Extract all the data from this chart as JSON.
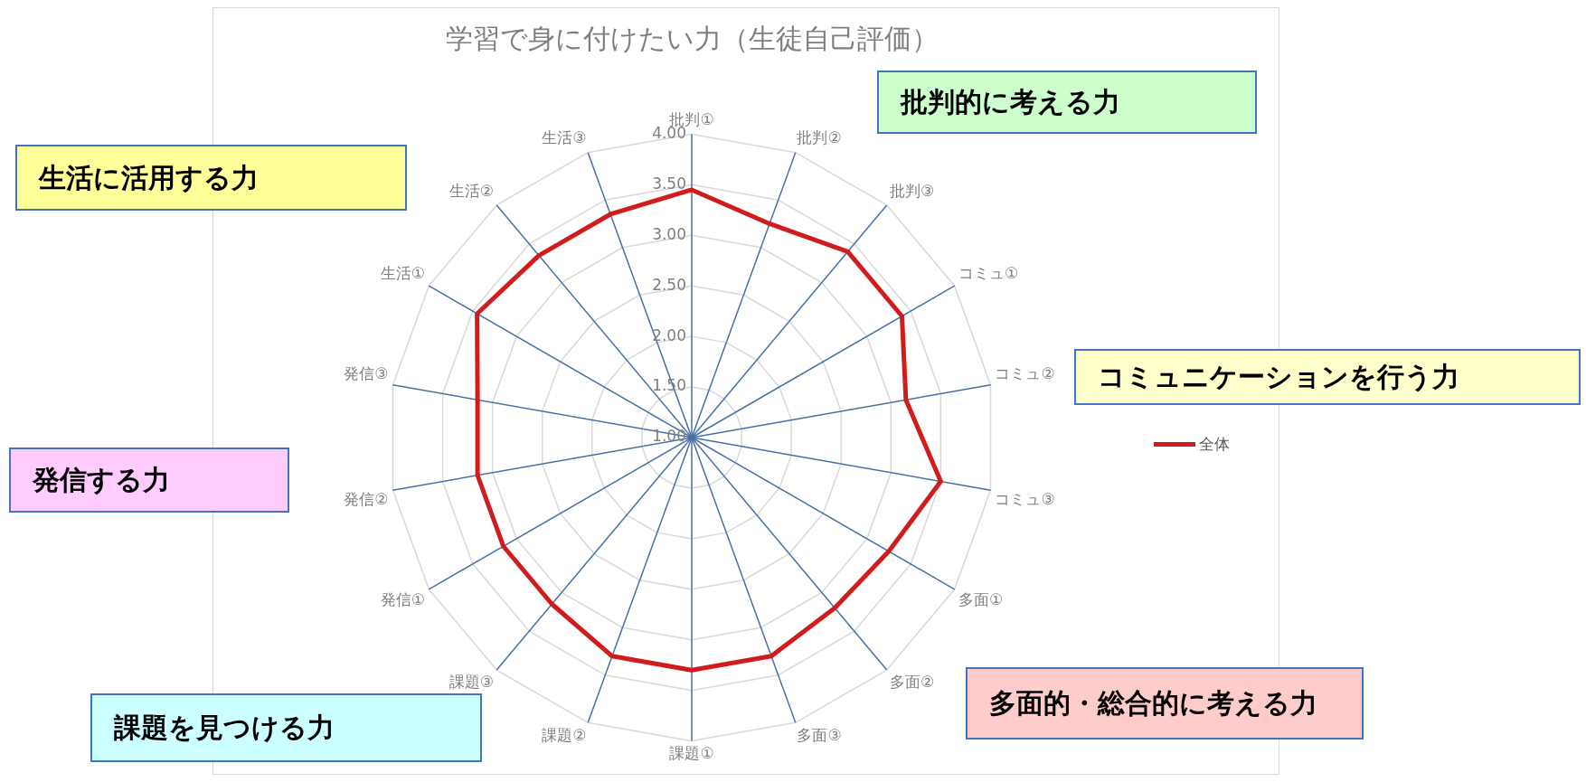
{
  "chart_data": {
    "type": "radar",
    "title": "学習で身に付けたい力（生徒自己評価）",
    "categories": [
      "批判①",
      "批判②",
      "批判③",
      "コミュ①",
      "コミュ②",
      "コミュ③",
      "多面①",
      "多面②",
      "多面③",
      "課題①",
      "課題②",
      "課題③",
      "発信①",
      "発信②",
      "発信③",
      "生活①",
      "生活②",
      "生活③"
    ],
    "series": [
      {
        "name": "全体",
        "color": "#d01c1c",
        "values": [
          3.45,
          3.25,
          3.4,
          3.4,
          3.15,
          3.5,
          3.25,
          3.2,
          3.3,
          3.3,
          3.3,
          3.15,
          3.15,
          3.15,
          3.15,
          3.45,
          3.35,
          3.35
        ]
      }
    ],
    "ylim": [
      1,
      4
    ],
    "yticks": [
      {
        "value": 1,
        "label": "1.00"
      },
      {
        "value": 1.5,
        "label": "1.50"
      },
      {
        "value": 2,
        "label": "2.00"
      },
      {
        "value": 2.5,
        "label": "2.50"
      },
      {
        "value": 3,
        "label": "3.00"
      },
      {
        "value": 3.5,
        "label": "3.50"
      },
      {
        "value": 4,
        "label": "4.00"
      }
    ],
    "grid": true,
    "legend": "right",
    "marker": "none",
    "line_style": "solid",
    "annotations": [
      "批判的に考える力",
      "生活に活用する力",
      "コミュニケーションを行う力",
      "発信する力",
      "多面的・総合的に考える力",
      "課題を見つける力"
    ]
  }
}
